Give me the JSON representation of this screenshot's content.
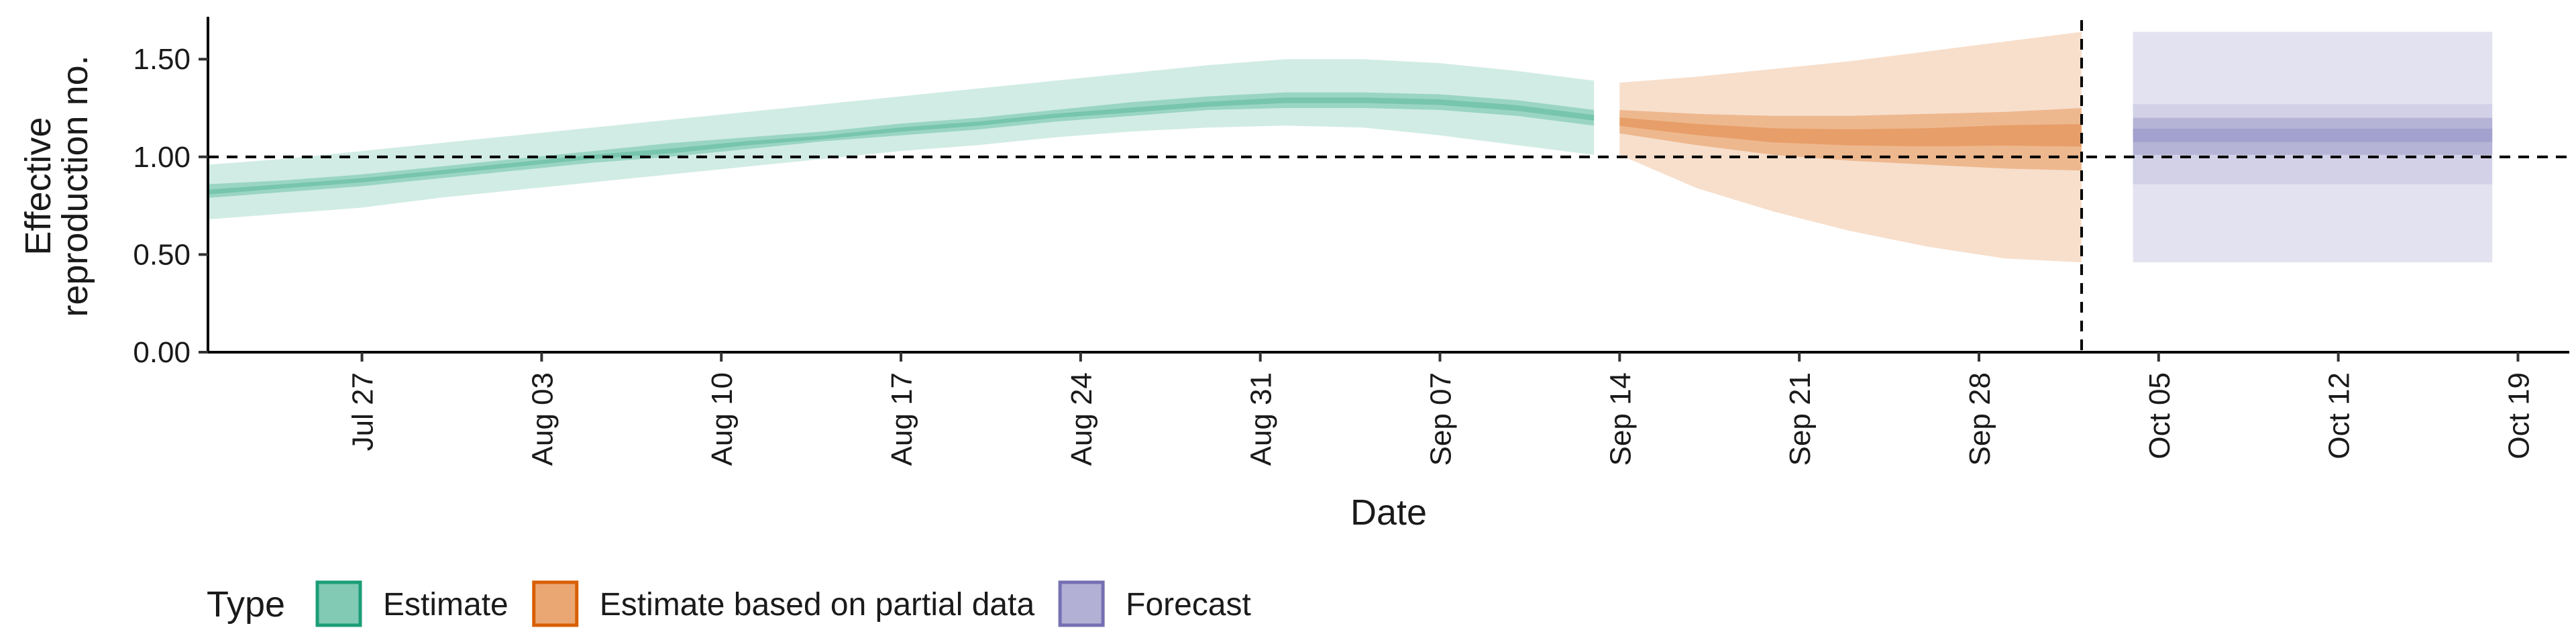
{
  "chart_data": {
    "type": "area",
    "xlabel": "Date",
    "ylabel_lines": [
      "Effective",
      "reproduction no."
    ],
    "ylim": [
      0,
      1.7
    ],
    "yticks": [
      0.0,
      0.5,
      1.0,
      1.5
    ],
    "ytick_labels": [
      "0.00",
      "0.50",
      "1.00",
      "1.50"
    ],
    "xlim": [
      "2020-07-21",
      "2020-10-21"
    ],
    "xticks": [
      "2020-07-27",
      "2020-08-03",
      "2020-08-10",
      "2020-08-17",
      "2020-08-24",
      "2020-08-31",
      "2020-09-07",
      "2020-09-14",
      "2020-09-21",
      "2020-09-28",
      "2020-10-05",
      "2020-10-12",
      "2020-10-19"
    ],
    "xtick_labels": [
      "Jul 27",
      "Aug 03",
      "Aug 10",
      "Aug 17",
      "Aug 24",
      "Aug 31",
      "Sep 07",
      "Sep 14",
      "Sep 21",
      "Sep 28",
      "Oct 05",
      "Oct 12",
      "Oct 19"
    ],
    "reference_line_y": 1.0,
    "vertical_line_x": "2020-10-02",
    "legend": {
      "title": "Type",
      "position": "bottom-left"
    },
    "series": [
      {
        "name": "Estimate",
        "color": "#1b9e77",
        "x": [
          "2020-07-21",
          "2020-07-24",
          "2020-07-27",
          "2020-07-30",
          "2020-08-02",
          "2020-08-05",
          "2020-08-08",
          "2020-08-11",
          "2020-08-14",
          "2020-08-17",
          "2020-08-20",
          "2020-08-23",
          "2020-08-26",
          "2020-08-29",
          "2020-09-01",
          "2020-09-04",
          "2020-09-07",
          "2020-09-10",
          "2020-09-13"
        ],
        "median": [
          0.82,
          0.85,
          0.88,
          0.92,
          0.96,
          1.0,
          1.03,
          1.07,
          1.1,
          1.14,
          1.17,
          1.21,
          1.24,
          1.27,
          1.29,
          1.29,
          1.28,
          1.25,
          1.2
        ],
        "lower_50": [
          0.79,
          0.82,
          0.85,
          0.89,
          0.93,
          0.97,
          1.0,
          1.04,
          1.08,
          1.11,
          1.14,
          1.18,
          1.21,
          1.24,
          1.25,
          1.25,
          1.24,
          1.21,
          1.16
        ],
        "upper_50": [
          0.86,
          0.88,
          0.91,
          0.95,
          0.99,
          1.03,
          1.07,
          1.1,
          1.13,
          1.17,
          1.2,
          1.24,
          1.28,
          1.31,
          1.33,
          1.33,
          1.32,
          1.29,
          1.24
        ],
        "lower_90": [
          0.68,
          0.71,
          0.74,
          0.79,
          0.83,
          0.87,
          0.91,
          0.95,
          0.99,
          1.03,
          1.06,
          1.1,
          1.13,
          1.15,
          1.16,
          1.15,
          1.11,
          1.06,
          1.01
        ],
        "upper_90": [
          0.96,
          0.99,
          1.03,
          1.07,
          1.11,
          1.15,
          1.19,
          1.23,
          1.27,
          1.31,
          1.35,
          1.39,
          1.43,
          1.47,
          1.5,
          1.5,
          1.48,
          1.44,
          1.39
        ]
      },
      {
        "name": "Estimate based on partial data",
        "color": "#d95f02",
        "x": [
          "2020-09-14",
          "2020-09-17",
          "2020-09-20",
          "2020-09-23",
          "2020-09-26",
          "2020-09-29",
          "2020-10-02"
        ],
        "median": [
          1.18,
          1.14,
          1.11,
          1.1,
          1.1,
          1.11,
          1.11
        ],
        "lower_50": [
          1.12,
          1.06,
          1.01,
          0.98,
          0.96,
          0.94,
          0.93
        ],
        "upper_50": [
          1.24,
          1.22,
          1.21,
          1.21,
          1.22,
          1.23,
          1.25
        ],
        "lower_90": [
          1.01,
          0.84,
          0.72,
          0.62,
          0.54,
          0.48,
          0.46
        ],
        "upper_90": [
          1.38,
          1.41,
          1.45,
          1.49,
          1.54,
          1.59,
          1.64
        ]
      },
      {
        "name": "Forecast",
        "color": "#7570b3",
        "x": [
          "2020-10-04",
          "2020-10-18"
        ],
        "median": [
          1.11,
          1.11
        ],
        "lower_50": [
          1.01,
          1.01
        ],
        "upper_50": [
          1.2,
          1.2
        ],
        "lower_30": [
          0.86,
          0.86
        ],
        "upper_30": [
          1.27,
          1.27
        ],
        "lower_90": [
          0.46,
          0.46
        ],
        "upper_90": [
          1.64,
          1.64
        ]
      }
    ]
  }
}
